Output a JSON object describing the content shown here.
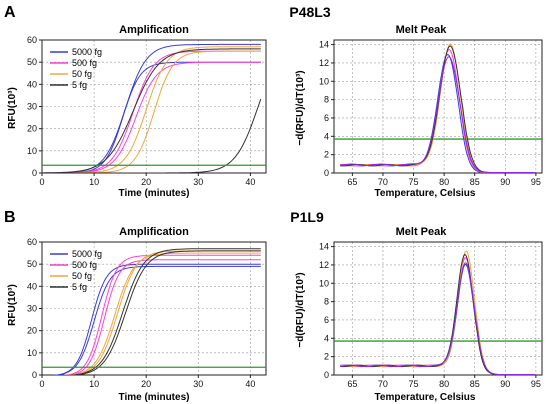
{
  "figure": {
    "panels": [
      {
        "letter": "A",
        "sample": "P48L3",
        "amplification": {
          "title": "Amplification",
          "xlabel": "Time (minutes)",
          "ylabel": "RFU(10³)",
          "xlim": [
            0,
            43
          ],
          "ylim": [
            0,
            60
          ],
          "xticks": [
            0,
            10,
            20,
            30,
            40
          ],
          "yticks": [
            0,
            10,
            20,
            30,
            40,
            50,
            60
          ],
          "threshold": 3.5,
          "legend": [
            {
              "label": "5000 fg",
              "color": "#3b3bd6"
            },
            {
              "label": "500 fg",
              "color": "#ff3fd8"
            },
            {
              "label": "50 fg",
              "color": "#f3a63a"
            },
            {
              "label": "5 fg",
              "color": "#333333"
            }
          ]
        },
        "melt": {
          "title": "Melt Peak",
          "xlabel": "Temperature, Celsius",
          "ylabel": "−d(RFU)/dT(10³)",
          "xlim": [
            62,
            96
          ],
          "ylim": [
            0,
            14.5
          ],
          "xticks": [
            65,
            70,
            75,
            80,
            85,
            90,
            95
          ],
          "yticks": [
            0,
            2,
            4,
            6,
            8,
            10,
            12,
            14
          ],
          "threshold": 3.7
        }
      },
      {
        "letter": "B",
        "sample": "P1L9",
        "amplification": {
          "title": "Amplification",
          "xlabel": "Time (minutes)",
          "ylabel": "RFU(10³)",
          "xlim": [
            0,
            43
          ],
          "ylim": [
            0,
            60
          ],
          "xticks": [
            0,
            10,
            20,
            30,
            40
          ],
          "yticks": [
            0,
            10,
            20,
            30,
            40,
            50,
            60
          ],
          "threshold": 3.5,
          "legend": [
            {
              "label": "5000 fg",
              "color": "#3b3bd6"
            },
            {
              "label": "500 fg",
              "color": "#ff3fd8"
            },
            {
              "label": "50 fg",
              "color": "#f3a63a"
            },
            {
              "label": "5 fg",
              "color": "#333333"
            }
          ]
        },
        "melt": {
          "title": "Melt Peak",
          "xlabel": "Temperature, Celsius",
          "ylabel": "−d(RFU)/dT(10³)",
          "xlim": [
            62,
            96
          ],
          "ylim": [
            0,
            14.5
          ],
          "xticks": [
            65,
            70,
            75,
            80,
            85,
            90,
            95
          ],
          "yticks": [
            0,
            2,
            4,
            6,
            8,
            10,
            12,
            14
          ],
          "threshold": 3.7
        }
      }
    ]
  },
  "chart_data": [
    {
      "type": "line",
      "panel": "A",
      "title": "Amplification",
      "xlabel": "Time (minutes)",
      "ylabel": "RFU(10³)",
      "xlim": [
        0,
        43
      ],
      "ylim": [
        0,
        60
      ],
      "grid": true,
      "legend": "top-left",
      "threshold_line": {
        "y": 3.5,
        "color": "#2e9a2e"
      },
      "series": [
        {
          "name": "5000 fg",
          "color": "#3b3bd6",
          "replicates": [
            {
              "t0": 16.0,
              "plateau": 58,
              "k": 0.5,
              "base": 0
            },
            {
              "t0": 15.5,
              "plateau": 50,
              "k": 0.6,
              "base": 0
            }
          ]
        },
        {
          "name": "500 fg",
          "color": "#ff3fd8",
          "replicates": [
            {
              "t0": 17.5,
              "plateau": 55,
              "k": 0.5,
              "base": 0
            },
            {
              "t0": 18.0,
              "plateau": 50,
              "k": 0.5,
              "base": 0
            }
          ]
        },
        {
          "name": "50 fg",
          "color": "#f3a63a",
          "replicates": [
            {
              "t0": 20.0,
              "plateau": 57,
              "k": 0.5,
              "base": 0
            },
            {
              "t0": 21.5,
              "plateau": 55,
              "k": 0.55,
              "base": 0
            }
          ]
        },
        {
          "name": "5 fg",
          "color": "#333333",
          "replicates": [
            {
              "t0": 17.5,
              "plateau": 56,
              "k": 0.4,
              "base": 0
            },
            {
              "t0": 41.5,
              "plateau": 60,
              "k": 0.45,
              "base": 0
            }
          ]
        }
      ]
    },
    {
      "type": "line",
      "panel": "A",
      "title": "Melt Peak",
      "xlabel": "Temperature, Celsius",
      "ylabel": "−d(RFU)/dT(10³)",
      "xlim": [
        62,
        96
      ],
      "ylim": [
        0,
        14.5
      ],
      "grid": true,
      "threshold_line": {
        "y": 3.7,
        "color": "#2e9a2e"
      },
      "peaks": [
        {
          "color": "#3b3bd6",
          "tm": 80.6,
          "height": 13.0,
          "width": 1.6,
          "base": 0.85
        },
        {
          "color": "#ff3fd8",
          "tm": 80.8,
          "height": 13.5,
          "width": 1.6,
          "base": 0.85
        },
        {
          "color": "#f3a63a",
          "tm": 81.0,
          "height": 14.0,
          "width": 1.6,
          "base": 0.85
        },
        {
          "color": "#333333",
          "tm": 81.0,
          "height": 13.8,
          "width": 1.7,
          "base": 0.85
        },
        {
          "color": "#8a2be2",
          "tm": 80.8,
          "height": 12.7,
          "width": 1.7,
          "base": 0.9
        }
      ]
    },
    {
      "type": "line",
      "panel": "B",
      "title": "Amplification",
      "xlabel": "Time (minutes)",
      "ylabel": "RFU(10³)",
      "xlim": [
        0,
        43
      ],
      "ylim": [
        0,
        60
      ],
      "grid": true,
      "legend": "top-left",
      "threshold_line": {
        "y": 3.5,
        "color": "#2e9a2e"
      },
      "series": [
        {
          "name": "5000 fg",
          "color": "#3b3bd6",
          "replicates": [
            {
              "t0": 9.5,
              "plateau": 50,
              "k": 0.7,
              "base": -0.5
            },
            {
              "t0": 10.0,
              "plateau": 49,
              "k": 0.65,
              "base": -0.5
            }
          ]
        },
        {
          "name": "500 fg",
          "color": "#ff3fd8",
          "replicates": [
            {
              "t0": 11.5,
              "plateau": 54,
              "k": 0.7,
              "base": -0.5
            },
            {
              "t0": 12.0,
              "plateau": 52,
              "k": 0.7,
              "base": -0.5
            }
          ]
        },
        {
          "name": "50 fg",
          "color": "#f3a63a",
          "replicates": [
            {
              "t0": 14.0,
              "plateau": 55,
              "k": 0.55,
              "base": -0.5
            },
            {
              "t0": 14.5,
              "plateau": 56,
              "k": 0.55,
              "base": -0.5
            }
          ]
        },
        {
          "name": "5 fg",
          "color": "#333333",
          "replicates": [
            {
              "t0": 15.5,
              "plateau": 57,
              "k": 0.5,
              "base": -0.5
            },
            {
              "t0": 16.0,
              "plateau": 56,
              "k": 0.5,
              "base": -0.5
            }
          ]
        }
      ]
    },
    {
      "type": "line",
      "panel": "B",
      "title": "Melt Peak",
      "xlabel": "Temperature, Celsius",
      "ylabel": "−d(RFU)/dT(10³)",
      "xlim": [
        62,
        96
      ],
      "ylim": [
        0,
        14.5
      ],
      "grid": true,
      "threshold_line": {
        "y": 3.7,
        "color": "#2e9a2e"
      },
      "peaks": [
        {
          "color": "#3b3bd6",
          "tm": 83.5,
          "height": 12.0,
          "width": 1.3,
          "base": 1.0
        },
        {
          "color": "#ff3fd8",
          "tm": 83.5,
          "height": 12.8,
          "width": 1.3,
          "base": 1.0
        },
        {
          "color": "#f3a63a",
          "tm": 83.6,
          "height": 13.6,
          "width": 1.3,
          "base": 1.0
        },
        {
          "color": "#333333",
          "tm": 83.4,
          "height": 13.2,
          "width": 1.3,
          "base": 1.0
        },
        {
          "color": "#8a2be2",
          "tm": 83.5,
          "height": 12.2,
          "width": 1.35,
          "base": 1.0
        }
      ]
    }
  ]
}
